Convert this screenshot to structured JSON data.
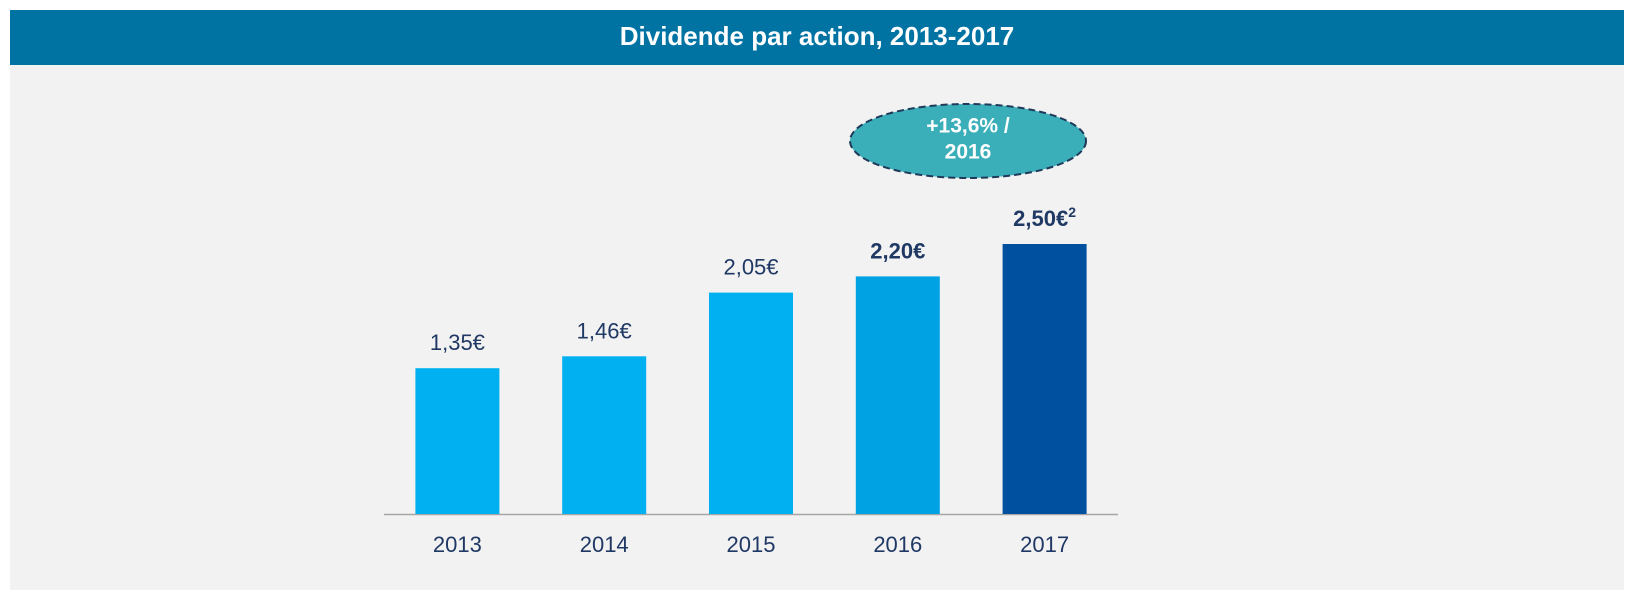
{
  "chart_data": {
    "type": "bar",
    "title": "Dividende par action, 2013-2017",
    "categories": [
      "2013",
      "2014",
      "2015",
      "2016",
      "2017"
    ],
    "values": [
      1.35,
      1.46,
      2.05,
      2.2,
      2.5
    ],
    "value_labels": [
      "1,35€",
      "1,46€",
      "2,05€",
      "2,20€",
      "2,50€"
    ],
    "value_label_superscripts": [
      null,
      null,
      null,
      null,
      "2"
    ],
    "bold_labels": [
      false,
      false,
      false,
      true,
      true
    ],
    "colors": [
      "#00b0f0",
      "#00b0f0",
      "#00b0f0",
      "#00a2e4",
      "#0050a0"
    ],
    "ylim": [
      0,
      3
    ],
    "annotation": {
      "lines": [
        "+13,6% /",
        "2016"
      ]
    }
  }
}
